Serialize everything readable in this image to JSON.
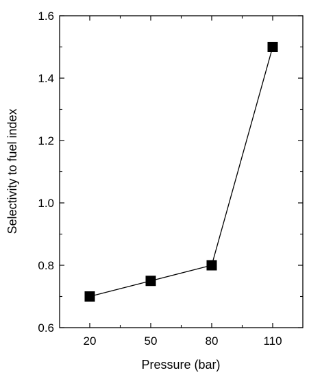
{
  "chart_data": {
    "type": "line",
    "title": "",
    "xlabel": "Pressure (bar)",
    "ylabel": "Selectivity to fuel index",
    "categories": [
      "20",
      "50",
      "80",
      "110"
    ],
    "x": [
      20,
      50,
      80,
      110
    ],
    "series": [
      {
        "values": [
          0.7,
          0.75,
          0.8,
          1.5
        ]
      }
    ],
    "ylim": [
      0.6,
      1.6
    ],
    "yticks": [
      "0.6",
      "0.8",
      "1.0",
      "1.2",
      "1.4",
      "1.6"
    ],
    "grid": false,
    "legend": "none",
    "marker": "square",
    "color": "#000000"
  }
}
